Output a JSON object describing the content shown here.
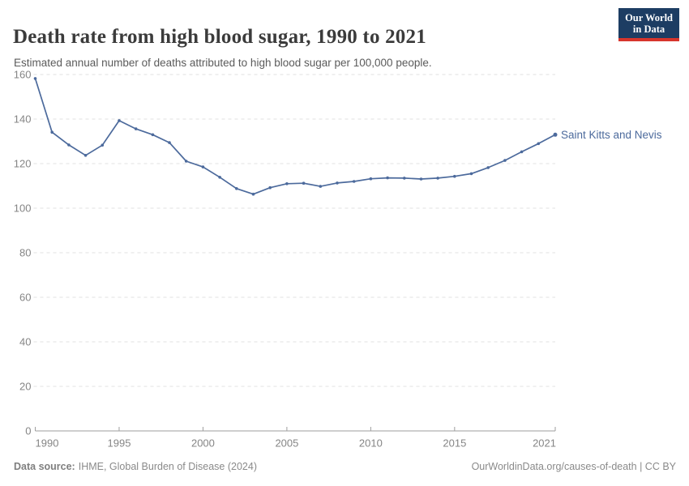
{
  "header": {
    "title": "Death rate from high blood sugar, 1990 to 2021",
    "subtitle": "Estimated annual number of deaths attributed to high blood sugar per 100,000 people.",
    "logo": {
      "line1": "Our World",
      "line2": "in Data"
    }
  },
  "chart_data": {
    "type": "line",
    "title": "Death rate from high blood sugar, 1990 to 2021",
    "xlabel": "",
    "ylabel": "",
    "x": [
      1990,
      1991,
      1992,
      1993,
      1994,
      1995,
      1996,
      1997,
      1998,
      1999,
      2000,
      2001,
      2002,
      2003,
      2004,
      2005,
      2006,
      2007,
      2008,
      2009,
      2010,
      2011,
      2012,
      2013,
      2014,
      2015,
      2016,
      2017,
      2018,
      2019,
      2020,
      2021
    ],
    "series": [
      {
        "name": "Saint Kitts and Nevis",
        "color": "#4C6A9C",
        "values": [
          158.2,
          134.1,
          128.4,
          123.7,
          128.3,
          139.3,
          135.6,
          133.0,
          129.4,
          121.1,
          118.5,
          113.9,
          108.8,
          106.3,
          109.2,
          111.0,
          111.2,
          109.8,
          111.3,
          112.0,
          113.2,
          113.6,
          113.5,
          113.1,
          113.5,
          114.3,
          115.5,
          118.2,
          121.4,
          125.3,
          129.0,
          133.0
        ]
      }
    ],
    "xlim": [
      1990,
      2021
    ],
    "ylim": [
      0,
      160
    ],
    "yticks": [
      0,
      20,
      40,
      60,
      80,
      100,
      120,
      140,
      160
    ],
    "xticks": [
      1990,
      1995,
      2000,
      2005,
      2010,
      2015,
      2021
    ],
    "grid": "horizontal-dashed",
    "legend_position": "end-of-line"
  },
  "footer": {
    "datasource_label": "Data source:",
    "datasource_text": "IHME, Global Burden of Disease (2024)",
    "attribution": "OurWorldinData.org/causes-of-death | CC BY"
  },
  "colors": {
    "line": "#4C6A9C",
    "entity_label": "#4C6A9C",
    "grid": "#e0e0e0",
    "axis": "#9e9e9e",
    "tick_label": "#858585",
    "title_text": "#3b3b3b",
    "subtitle_text": "#5b5b5b",
    "logo_bg": "#1d3d63",
    "logo_accent": "#d7352c"
  }
}
